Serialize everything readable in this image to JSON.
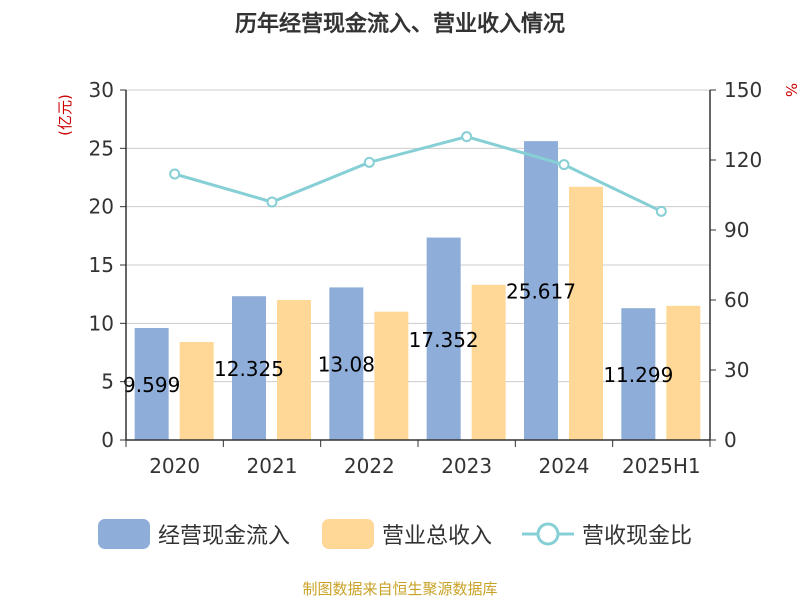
{
  "chart_data": {
    "type": "bar",
    "title": "历年经营现金流入、营业收入情况",
    "categories": [
      "2020",
      "2021",
      "2022",
      "2023",
      "2024",
      "2025H1"
    ],
    "series": [
      {
        "name": "经营现金流入",
        "axis": "left",
        "type": "bar",
        "color": "#8eaed9",
        "values": [
          9.599,
          12.325,
          13.08,
          17.352,
          25.617,
          11.299
        ]
      },
      {
        "name": "营业总收入",
        "axis": "left",
        "type": "bar",
        "color": "#ffd898",
        "values": [
          8.4,
          12.0,
          11.0,
          13.3,
          21.7,
          11.5
        ]
      },
      {
        "name": "营收现金比",
        "axis": "right",
        "type": "line",
        "color": "#86cfd5",
        "values": [
          114,
          102,
          119,
          130,
          118,
          98
        ]
      }
    ],
    "data_labels": [
      "9.599",
      "12.325",
      "13.08",
      "17.352",
      "25.617",
      "11.299"
    ],
    "y_left": {
      "label": "(亿元)",
      "ylim": [
        0,
        30
      ],
      "ticks": [
        "0",
        "5",
        "10",
        "15",
        "20",
        "25",
        "30"
      ]
    },
    "y_right": {
      "label": "%",
      "ylim": [
        0,
        150
      ],
      "ticks": [
        "0",
        "30",
        "60",
        "90",
        "120",
        "150"
      ]
    },
    "grid": true,
    "legend_position": "bottom"
  },
  "source": "制图数据来自恒生聚源数据库",
  "colors": {
    "axis_label": "#cc0000",
    "source": "#c9a227",
    "grid": "#cccccc"
  }
}
